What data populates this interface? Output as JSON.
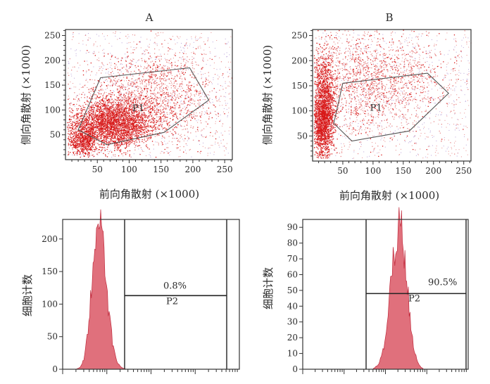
{
  "figure": {
    "panel_labels": [
      "A",
      "B"
    ],
    "x_axis_title": "前向角散射 (×1000)",
    "y_axis_title_scatter": "侧向角散射 (×1000)",
    "y_axis_title_hist": "细胞计数"
  },
  "colors": {
    "dots_dense": "#d81818",
    "dots_sparse": "#e88a8a",
    "hist_fill": "#e0707c",
    "hist_edge": "#c02a3c",
    "axis": "#333333"
  },
  "chart_data": [
    {
      "id": "scatter-a",
      "type": "scatter",
      "title": "A",
      "xlabel": "前向角散射 (×1000)",
      "ylabel": "侧向角散射 (×1000)",
      "xlim": [
        0,
        262
      ],
      "ylim": [
        0,
        262
      ],
      "xticks": [
        50,
        100,
        150,
        200,
        250
      ],
      "yticks": [
        50,
        100,
        150,
        200,
        250
      ],
      "gate": {
        "name": "P1",
        "vertices": [
          [
            20,
            60
          ],
          [
            55,
            165
          ],
          [
            195,
            185
          ],
          [
            225,
            120
          ],
          [
            155,
            55
          ],
          [
            65,
            30
          ]
        ]
      },
      "clusters": [
        {
          "cx": 75,
          "cy": 75,
          "sx": 32,
          "sy": 24,
          "n": 3200
        },
        {
          "cx": 28,
          "cy": 40,
          "sx": 12,
          "sy": 16,
          "n": 700
        },
        {
          "cx": 140,
          "cy": 130,
          "sx": 55,
          "sy": 48,
          "n": 1600
        }
      ]
    },
    {
      "id": "scatter-b",
      "type": "scatter",
      "title": "B",
      "xlabel": "前向角散射 (×1000)",
      "ylabel": "侧向角散射 (×1000)",
      "xlim": [
        0,
        262
      ],
      "ylim": [
        0,
        262
      ],
      "xticks": [
        50,
        100,
        150,
        200,
        250
      ],
      "yticks": [
        50,
        100,
        150,
        200,
        250
      ],
      "gate": {
        "name": "P1",
        "vertices": [
          [
            35,
            75
          ],
          [
            50,
            155
          ],
          [
            190,
            175
          ],
          [
            225,
            135
          ],
          [
            160,
            60
          ],
          [
            65,
            40
          ]
        ]
      },
      "clusters": [
        {
          "cx": 18,
          "cy": 110,
          "sx": 9,
          "sy": 50,
          "n": 1800
        },
        {
          "cx": 15,
          "cy": 75,
          "sx": 7,
          "sy": 25,
          "n": 800
        },
        {
          "cx": 100,
          "cy": 160,
          "sx": 65,
          "sy": 55,
          "n": 1800
        }
      ]
    },
    {
      "id": "hist-a",
      "type": "area",
      "title": "",
      "xlabel": "",
      "ylabel": "细胞计数",
      "xscale": "log",
      "ylim": [
        0,
        230
      ],
      "yticks": [
        0,
        50,
        100,
        150,
        200
      ],
      "gate": {
        "name": "P2",
        "x_start_frac": 0.38,
        "x_end_frac": 0.99,
        "y_value": 113
      },
      "percent_label": "0.8%",
      "peak": {
        "center_frac": 0.2,
        "height": 225,
        "width_left_frac": 0.035,
        "width_right_frac": 0.045
      }
    },
    {
      "id": "hist-b",
      "type": "area",
      "title": "",
      "xlabel": "",
      "ylabel": "细胞计数",
      "xscale": "log",
      "ylim": [
        0,
        95
      ],
      "yticks": [
        0,
        10,
        20,
        30,
        40,
        50,
        60,
        70,
        80,
        90
      ],
      "gate": {
        "name": "P2",
        "x_start_frac": 0.38,
        "x_end_frac": 0.9,
        "y_value": 48
      },
      "percent_label": "90.5%",
      "peak": {
        "center_frac": 0.585,
        "height": 90,
        "width_left_frac": 0.05,
        "width_right_frac": 0.045
      }
    }
  ]
}
